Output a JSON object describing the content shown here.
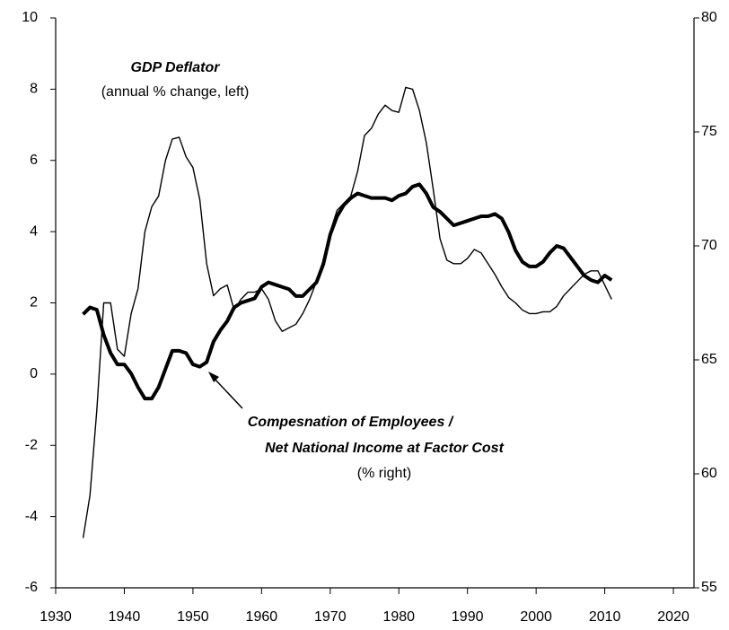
{
  "chart_data": {
    "type": "line",
    "annotations": [
      {
        "text": "GDP Deflator"
      },
      {
        "text": "(annual % change, left)"
      },
      {
        "text": "Compesnation of Employees /"
      },
      {
        "text": "Net National Income at Factor Cost"
      },
      {
        "text": "(% right)"
      }
    ],
    "x": [
      1934,
      1935,
      1936,
      1937,
      1938,
      1939,
      1940,
      1941,
      1942,
      1943,
      1944,
      1945,
      1946,
      1947,
      1948,
      1949,
      1950,
      1951,
      1952,
      1953,
      1954,
      1955,
      1956,
      1957,
      1958,
      1959,
      1960,
      1961,
      1962,
      1963,
      1964,
      1965,
      1966,
      1967,
      1968,
      1969,
      1970,
      1971,
      1972,
      1973,
      1974,
      1975,
      1976,
      1977,
      1978,
      1979,
      1980,
      1981,
      1982,
      1983,
      1984,
      1985,
      1986,
      1987,
      1988,
      1989,
      1990,
      1991,
      1992,
      1993,
      1994,
      1995,
      1996,
      1997,
      1998,
      1999,
      2000,
      2001,
      2002,
      2003,
      2004,
      2005,
      2006,
      2007,
      2008,
      2009,
      2010,
      2011
    ],
    "series": [
      {
        "color": "#000000",
        "line_width": 1.4,
        "axis": "y",
        "values": [
          -4.6,
          -3.4,
          -1.0,
          2.0,
          2.0,
          0.7,
          0.5,
          1.7,
          2.4,
          4.0,
          4.7,
          5.0,
          6.0,
          6.6,
          6.65,
          6.1,
          5.8,
          4.9,
          3.1,
          2.2,
          2.4,
          2.5,
          1.8,
          2.1,
          2.3,
          2.3,
          2.4,
          2.1,
          1.5,
          1.2,
          1.3,
          1.4,
          1.7,
          2.1,
          2.6,
          3.2,
          4.0,
          4.6,
          4.8,
          5.0,
          5.7,
          6.7,
          6.9,
          7.3,
          7.55,
          7.4,
          7.35,
          8.05,
          8.0,
          7.4,
          6.5,
          5.2,
          3.8,
          3.2,
          3.1,
          3.1,
          3.25,
          3.5,
          3.4,
          3.1,
          2.8,
          2.45,
          2.15,
          2.0,
          1.8,
          1.7,
          1.7,
          1.75,
          1.75,
          1.9,
          2.2,
          2.4,
          2.6,
          2.8,
          2.9,
          2.9,
          2.5,
          2.1
        ]
      },
      {
        "color": "#000000",
        "line_width": 4,
        "axis": "y2",
        "values": [
          67.0,
          67.3,
          67.2,
          66.1,
          65.3,
          64.8,
          64.8,
          64.4,
          63.8,
          63.3,
          63.3,
          63.8,
          64.6,
          65.4,
          65.4,
          65.3,
          64.8,
          64.7,
          64.9,
          65.8,
          66.3,
          66.7,
          67.3,
          67.5,
          67.6,
          67.7,
          68.2,
          68.4,
          68.3,
          68.2,
          68.1,
          67.8,
          67.8,
          68.1,
          68.4,
          69.2,
          70.5,
          71.3,
          71.8,
          72.1,
          72.3,
          72.2,
          72.1,
          72.1,
          72.1,
          72.0,
          72.2,
          72.3,
          72.6,
          72.7,
          72.3,
          71.7,
          71.5,
          71.2,
          70.9,
          71.0,
          71.1,
          71.2,
          71.3,
          71.3,
          71.4,
          71.2,
          70.6,
          69.8,
          69.3,
          69.1,
          69.1,
          69.3,
          69.7,
          70.0,
          69.9,
          69.5,
          69.1,
          68.7,
          68.5,
          68.4,
          68.7,
          68.5
        ]
      }
    ],
    "xlim": [
      1930,
      2023
    ],
    "xticks": [
      1930,
      1940,
      1950,
      1960,
      1970,
      1980,
      1990,
      2000,
      2010,
      2020
    ],
    "ylim": [
      -6,
      10
    ],
    "yticks": [
      -6,
      -4,
      -2,
      0,
      2,
      4,
      6,
      8,
      10
    ],
    "y2lim": [
      55,
      80
    ],
    "y2ticks": [
      55,
      60,
      65,
      70,
      75,
      80
    ],
    "grid": false
  }
}
